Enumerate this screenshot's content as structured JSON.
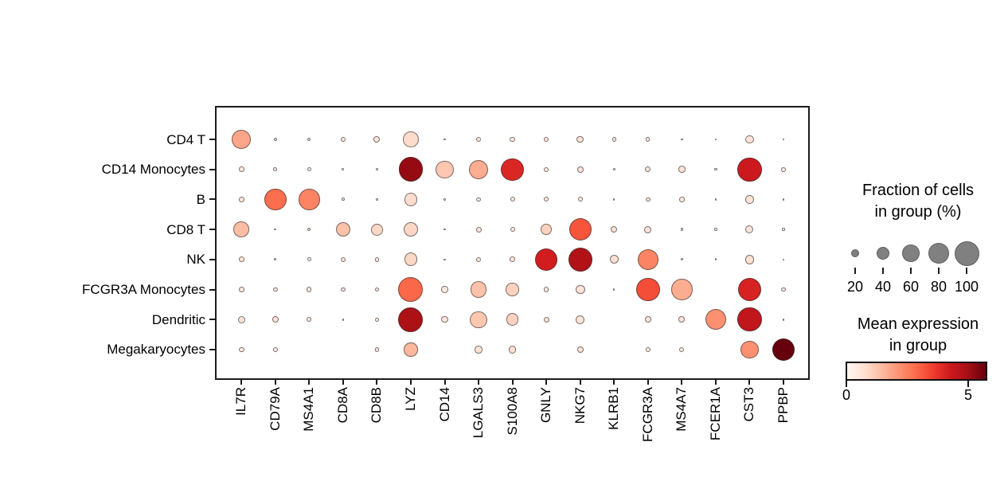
{
  "chart_data": {
    "type": "dotplot",
    "description": "Dot plot of marker gene expression per cell type; dot size = fraction of cells expressing, color = mean expression (Reds colormap)",
    "genes": [
      "IL7R",
      "CD79A",
      "MS4A1",
      "CD8A",
      "CD8B",
      "LYZ",
      "CD14",
      "LGALS3",
      "S100A8",
      "GNLY",
      "NKG7",
      "KLRB1",
      "FCGR3A",
      "MS4A7",
      "FCER1A",
      "CST3",
      "PPBP"
    ],
    "cell_types": [
      "CD4 T",
      "CD14 Monocytes",
      "B",
      "CD8 T",
      "NK",
      "FCGR3A Monocytes",
      "Dendritic",
      "Megakaryocytes"
    ],
    "rows": [
      {
        "name": "CD4 T",
        "frac": [
          70,
          6,
          6,
          10,
          14,
          52,
          2,
          11,
          11,
          10,
          16,
          8,
          8,
          3,
          3,
          21,
          2
        ],
        "expr": [
          1.8,
          0.4,
          0.4,
          0.5,
          0.5,
          0.8,
          0.3,
          0.5,
          0.4,
          0.5,
          0.6,
          0.5,
          0.4,
          0.3,
          0.3,
          0.6,
          0.3
        ]
      },
      {
        "name": "CD14 Monocytes",
        "frac": [
          11,
          8,
          8,
          4,
          4,
          98,
          62,
          70,
          88,
          10,
          14,
          4,
          12,
          16,
          4,
          97,
          9
        ],
        "expr": [
          0.5,
          0.4,
          0.4,
          0.3,
          0.3,
          5.2,
          1.2,
          1.7,
          4.0,
          0.5,
          0.5,
          0.3,
          0.5,
          0.6,
          0.3,
          4.3,
          0.4
        ]
      },
      {
        "name": "B",
        "frac": [
          11,
          85,
          80,
          5,
          3,
          41,
          2,
          8,
          10,
          10,
          10,
          2,
          9,
          11,
          2,
          22,
          2
        ],
        "expr": [
          0.5,
          2.8,
          2.4,
          0.4,
          0.3,
          0.8,
          0.3,
          0.4,
          0.4,
          0.5,
          0.5,
          0.3,
          0.4,
          0.5,
          0.3,
          0.6,
          0.3
        ]
      },
      {
        "name": "CD8 T",
        "frac": [
          52,
          3,
          6,
          47,
          36,
          46,
          3,
          12,
          10,
          31,
          87,
          15,
          17,
          4,
          4,
          20,
          4
        ],
        "expr": [
          1.4,
          0.3,
          0.4,
          1.3,
          0.9,
          0.9,
          0.3,
          0.5,
          0.4,
          1.0,
          3.2,
          0.6,
          0.6,
          0.3,
          0.3,
          0.6,
          0.3
        ]
      },
      {
        "name": "NK",
        "frac": [
          11,
          3,
          7,
          10,
          9,
          41,
          2,
          10,
          11,
          87,
          95,
          23,
          78,
          3,
          3,
          25,
          2
        ],
        "expr": [
          0.5,
          0.3,
          0.4,
          0.5,
          0.4,
          0.9,
          0.3,
          0.5,
          0.5,
          4.2,
          4.8,
          0.7,
          2.4,
          0.3,
          0.3,
          0.7,
          0.3
        ]
      },
      {
        "name": "FCGR3A Monocytes",
        "frac": [
          11,
          9,
          10,
          9,
          9,
          100,
          15,
          55,
          40,
          11,
          25,
          2,
          95,
          80,
          0,
          93,
          9
        ],
        "expr": [
          0.5,
          0.4,
          0.5,
          0.4,
          0.4,
          2.9,
          0.5,
          1.3,
          1.0,
          0.5,
          0.6,
          0.3,
          3.3,
          1.7,
          0,
          4.1,
          0.4
        ]
      },
      {
        "name": "Dendritic",
        "frac": [
          18,
          14,
          10,
          3,
          7,
          100,
          15,
          58,
          37,
          12,
          22,
          0,
          14,
          15,
          78,
          97,
          3
        ],
        "expr": [
          0.6,
          0.6,
          0.5,
          0.3,
          0.4,
          4.9,
          0.5,
          1.2,
          1.0,
          0.5,
          0.6,
          0,
          0.5,
          0.5,
          2.2,
          4.5,
          0.3
        ]
      },
      {
        "name": "Megakaryocytes",
        "frac": [
          11,
          9,
          0,
          0,
          9,
          44,
          0,
          18,
          18,
          0,
          15,
          0,
          10,
          10,
          0,
          62,
          88
        ],
        "expr": [
          0.5,
          0.4,
          0,
          0,
          0.4,
          1.5,
          0,
          0.7,
          0.7,
          0,
          0.6,
          0,
          0.4,
          0.4,
          0,
          2.2,
          5.75
        ]
      }
    ],
    "size_legend": {
      "title": "Fraction of cells\nin group (%)",
      "values": [
        20,
        40,
        60,
        80,
        100
      ],
      "dot_color": "#808080"
    },
    "color_legend": {
      "title": "Mean expression\nin group",
      "tick_values": [
        0,
        5
      ],
      "vmin": 0,
      "vmax": 5.75,
      "colormap": "Reds",
      "colormap_stops": [
        "#fff5f0",
        "#fee0d2",
        "#fcbba1",
        "#fc9272",
        "#fb6a4a",
        "#ef3b2c",
        "#cb181d",
        "#a50f15",
        "#67000d"
      ]
    },
    "dot_edge_color": "#323232"
  }
}
